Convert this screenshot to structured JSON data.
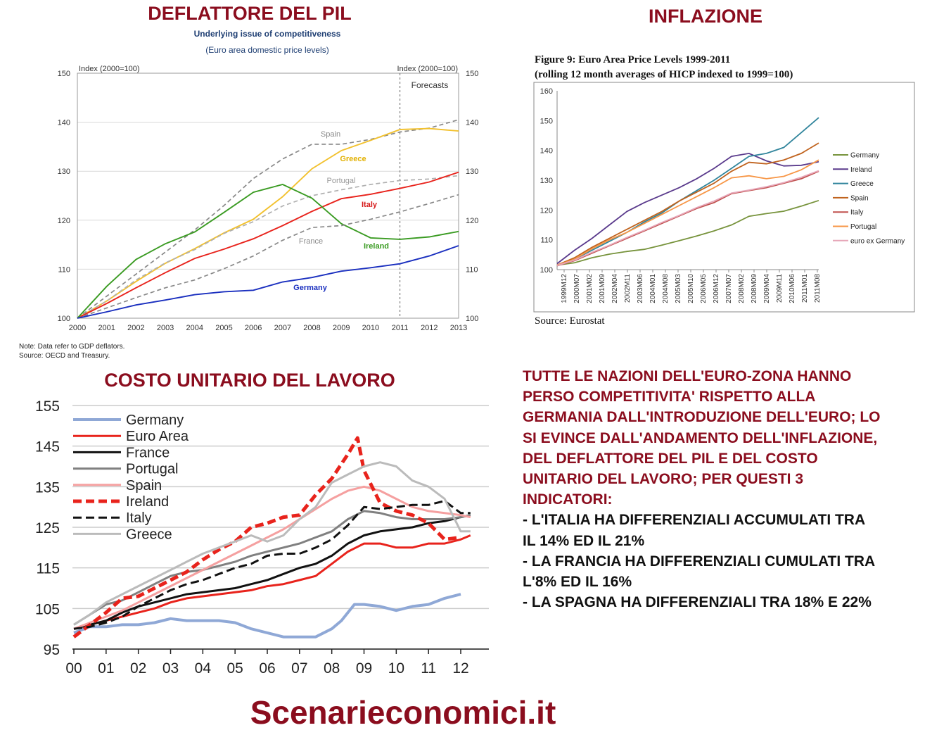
{
  "titles": {
    "deflator": "DEFLATTORE DEL PIL",
    "inflation": "INFLAZIONE",
    "labor_cost": "COSTO UNITARIO DEL LAVORO"
  },
  "deflator": {
    "subtitle": "Underlying issue of competitiveness",
    "subtitle2": "(Euro area domestic price levels)",
    "note": "Note: Data refer to GDP deflators.",
    "source": "Source: OECD and Treasury."
  },
  "inflation": {
    "figure_title": "Figure 9: Euro Area Price Levels 1999-2011",
    "figure_subtitle": "(rolling 12 month averages of HICP indexed to 1999=100)",
    "source": "Source: Eurostat"
  },
  "commentary": {
    "intro_lines": [
      "TUTTE LE NAZIONI DELL'EURO-ZONA HANNO",
      "PERSO COMPETITIVITA' RISPETTO ALLA",
      "GERMANIA DALL'INTRODUZIONE DELL'EURO; LO",
      "SI EVINCE DALL'ANDAMENTO DELL'INFLAZIONE,",
      "DEL DEFLATTORE DEL PIL E DEL COSTO",
      "UNITARIO DEL LAVORO; PER QUESTI 3",
      "INDICATORI:"
    ],
    "points": [
      "- L'ITALIA HA DIFFERENZIALI ACCUMULATI TRA",
      "IL 14% ED IL 21%",
      "- LA FRANCIA HA DIFFERENZIALI CUMULATI TRA",
      "L'8% ED IL 16%",
      "- LA SPAGNA HA DIFFERENZIALI TRA 18% E 22%"
    ]
  },
  "brand": "Scenarieconomici.it",
  "chart_data": [
    {
      "type": "line",
      "title": "DEFLATTORE DEL PIL",
      "ylabel": "Index (2000=100)",
      "ylabel_right": "Index (2000=100)",
      "annotation": "Forecasts",
      "forecast_start": 2011,
      "x": [
        2000,
        2001,
        2002,
        2003,
        2004,
        2005,
        2006,
        2007,
        2008,
        2009,
        2010,
        2011,
        2012,
        2013
      ],
      "ylim": [
        100,
        150
      ],
      "yticks": [
        100,
        110,
        120,
        130,
        140,
        150
      ],
      "series": [
        {
          "name": "Spain",
          "color": "#888888",
          "dashed": true,
          "values": [
            100,
            104.5,
            109,
            113.5,
            118,
            123,
            128.5,
            132.5,
            135.5,
            135.5,
            136.5,
            138,
            138.8,
            140.5
          ]
        },
        {
          "name": "Greece",
          "color": "#f2c12e",
          "dashed": false,
          "values": [
            100,
            103.5,
            107.5,
            111.2,
            114.2,
            117.4,
            120.2,
            124.8,
            130.5,
            134.2,
            136.3,
            138.5,
            138.7,
            138.2
          ]
        },
        {
          "name": "Portugal",
          "color": "#b0b0b0",
          "dashed": true,
          "values": [
            100,
            103.5,
            107.8,
            111.3,
            114,
            117.3,
            119.7,
            122.9,
            125,
            126.2,
            127.3,
            128.1,
            128.4,
            129.1
          ]
        },
        {
          "name": "Italy",
          "color": "#e8231c",
          "dashed": false,
          "values": [
            100,
            103,
            106.2,
            109.3,
            112.2,
            114.1,
            116.2,
            118.9,
            121.8,
            124.4,
            125.3,
            126.5,
            127.8,
            129.8
          ]
        },
        {
          "name": "Ireland",
          "color": "#3a9b22",
          "dashed": false,
          "values": [
            100,
            106.5,
            112,
            115.2,
            117.6,
            121.6,
            125.7,
            127.3,
            124.5,
            119.3,
            116.4,
            116.1,
            116.6,
            117.7
          ]
        },
        {
          "name": "France",
          "color": "#888888",
          "dashed": true,
          "values": [
            100,
            102.1,
            104.2,
            106.2,
            107.8,
            110.1,
            112.7,
            115.9,
            118.5,
            118.9,
            120.2,
            121.7,
            123.4,
            125.2
          ]
        },
        {
          "name": "Germany",
          "color": "#1a2fbf",
          "dashed": false,
          "values": [
            100,
            101.3,
            102.7,
            103.7,
            104.8,
            105.4,
            105.7,
            107.4,
            108.3,
            109.6,
            110.3,
            111.1,
            112.7,
            114.8
          ]
        }
      ]
    },
    {
      "type": "line",
      "title": "Figure 9: Euro Area Price Levels 1999-2011",
      "subtitle": "(rolling 12 month averages of HICP indexed to 1999=100)",
      "x_ticks": [
        "1999M12",
        "2000M07",
        "2001M02",
        "2001M09",
        "2002M04",
        "2002M11",
        "2003M06",
        "2004M01",
        "2004M08",
        "2005M03",
        "2005M10",
        "2006M05",
        "2006M12",
        "2007M07",
        "2008M02",
        "2008M09",
        "2009M04",
        "2009M11",
        "2010M06",
        "2011M01",
        "2011M08"
      ],
      "ylim": [
        100,
        160
      ],
      "yticks": [
        100,
        110,
        120,
        130,
        140,
        150,
        160
      ],
      "legend": "right",
      "series": [
        {
          "name": "Germany",
          "color": "#77933c",
          "values": [
            101.5,
            102.3,
            104,
            105.2,
            106.1,
            106.8,
            108.2,
            109.7,
            111.3,
            113,
            115,
            117.9,
            118.8,
            119.6,
            121.3,
            123.2
          ]
        },
        {
          "name": "Ireland",
          "color": "#5a3a8c",
          "values": [
            102,
            106.5,
            110.5,
            115,
            119.5,
            122.5,
            125,
            127.5,
            130.5,
            134,
            138,
            139,
            136.5,
            134.8,
            135,
            136.2
          ]
        },
        {
          "name": "Greece",
          "color": "#31859c",
          "values": [
            101.5,
            103.5,
            106.5,
            109.5,
            112.5,
            116,
            119,
            123,
            126.5,
            130,
            134,
            138,
            139,
            141,
            146,
            151
          ]
        },
        {
          "name": "Spain",
          "color": "#c0631e",
          "values": [
            101.5,
            104,
            107.5,
            110.5,
            113.5,
            116.5,
            119.5,
            123,
            126,
            129,
            133,
            136,
            135.5,
            136.8,
            139,
            142.5
          ]
        },
        {
          "name": "Italy",
          "color": "#c0504d",
          "values": [
            101.3,
            103,
            105.5,
            108,
            110.5,
            113,
            115.5,
            118,
            120.5,
            122.5,
            125.5,
            126.5,
            127.5,
            129,
            130.5,
            133
          ]
        },
        {
          "name": "Portugal",
          "color": "#f79646",
          "values": [
            101.5,
            103.5,
            107,
            110,
            112.5,
            115.5,
            118.5,
            121.5,
            124.5,
            127.5,
            130.8,
            131.5,
            130.5,
            131.3,
            133.5,
            136.8
          ]
        },
        {
          "name": "euro ex Germany",
          "color": "#e6a6b8",
          "values": [
            101.4,
            103.2,
            105.8,
            108.2,
            110.8,
            113.2,
            115.8,
            118.2,
            120.8,
            123,
            125.7,
            126.7,
            127.8,
            129.2,
            131,
            133.2
          ]
        }
      ]
    },
    {
      "type": "line",
      "title": "COSTO UNITARIO DEL LAVORO",
      "categories": [
        "00",
        "01",
        "02",
        "03",
        "04",
        "05",
        "06",
        "07",
        "08",
        "09",
        "10",
        "11",
        "12"
      ],
      "ylim": [
        95,
        155
      ],
      "yticks": [
        95,
        105,
        115,
        125,
        135,
        145,
        155
      ],
      "legend": "top-left",
      "series": [
        {
          "name": "Germany",
          "color": "#8fa8d6",
          "width": 4,
          "dashed": false,
          "x": [
            0,
            0.5,
            1,
            1.5,
            2,
            2.5,
            3,
            3.5,
            4,
            4.5,
            5,
            5.5,
            6,
            6.5,
            7,
            7.5,
            8,
            8.3,
            8.7,
            9,
            9.5,
            10,
            10.5,
            11,
            11.5,
            12
          ],
          "values": [
            99,
            100.5,
            100.5,
            101,
            101,
            101.5,
            102.5,
            102,
            102,
            102,
            101.5,
            100,
            99,
            98,
            98,
            98,
            100,
            102,
            106,
            106,
            105.5,
            104.5,
            105.5,
            106,
            107.5,
            108.5
          ]
        },
        {
          "name": "Euro Area",
          "color": "#e8231c",
          "width": 3,
          "dashed": false,
          "x": [
            0,
            0.5,
            1,
            1.5,
            2,
            2.5,
            3,
            3.5,
            4,
            4.5,
            5,
            5.5,
            6,
            6.5,
            7,
            7.5,
            8,
            8.5,
            9,
            9.5,
            10,
            10.5,
            11,
            11.5,
            12,
            12.3
          ],
          "values": [
            100,
            101,
            102,
            103,
            104,
            105,
            106.5,
            107.5,
            108,
            108.5,
            109,
            109.5,
            110.5,
            111,
            112,
            113,
            116,
            119,
            121,
            121,
            120,
            120,
            121,
            121,
            122,
            123
          ]
        },
        {
          "name": "France",
          "color": "#111111",
          "width": 3,
          "dashed": false,
          "x": [
            0,
            0.5,
            1,
            1.5,
            2,
            2.5,
            3,
            3.5,
            4,
            4.5,
            5,
            5.5,
            6,
            6.5,
            7,
            7.5,
            8,
            8.5,
            9,
            9.5,
            10,
            10.5,
            11,
            11.5,
            12,
            12.3
          ],
          "values": [
            100,
            101,
            102,
            104,
            105.5,
            106.5,
            107.5,
            108.5,
            109,
            109.5,
            110,
            111,
            112,
            113.5,
            115,
            116,
            118,
            121,
            123,
            124,
            124.5,
            125,
            126,
            126.5,
            127.5,
            128
          ]
        },
        {
          "name": "Portugal",
          "color": "#808080",
          "width": 3,
          "dashed": false,
          "x": [
            0,
            0.5,
            1,
            1.5,
            2,
            2.5,
            3,
            3.5,
            4,
            4.5,
            5,
            5.5,
            6,
            6.5,
            7,
            7.5,
            8,
            8.5,
            9,
            9.5,
            10,
            10.5,
            11,
            11.5,
            12,
            12.3
          ],
          "values": [
            101,
            103.5,
            106,
            107,
            109,
            111,
            113,
            114,
            114.5,
            115.5,
            116.5,
            118,
            119,
            120,
            121,
            122.5,
            124,
            127,
            129,
            128.5,
            127.5,
            127,
            127,
            127,
            127.5,
            128
          ]
        },
        {
          "name": "Spain",
          "color": "#f5a0a0",
          "width": 3,
          "dashed": false,
          "x": [
            0,
            0.5,
            1,
            1.5,
            2,
            2.5,
            3,
            3.5,
            4,
            4.5,
            5,
            5.5,
            6,
            6.5,
            7,
            7.5,
            8,
            8.5,
            9,
            9.5,
            10,
            10.5,
            11,
            11.5,
            12,
            12.3
          ],
          "values": [
            100,
            101.5,
            103,
            104.5,
            106.5,
            108.5,
            110.5,
            112.5,
            114.5,
            116.5,
            118.5,
            120.5,
            122.5,
            124.5,
            127,
            129.5,
            132,
            134,
            135,
            134,
            132,
            130,
            129,
            128.5,
            128,
            127.5
          ]
        },
        {
          "name": "Ireland",
          "color": "#e8231c",
          "width": 5,
          "dashed": true,
          "x": [
            0,
            0.5,
            1,
            1.5,
            2,
            2.5,
            3,
            3.5,
            4,
            4.5,
            5,
            5.5,
            6,
            6.5,
            7,
            7.5,
            8,
            8.5,
            8.8,
            9,
            9.5,
            10,
            10.5,
            11,
            11.5,
            12
          ],
          "values": [
            98,
            101,
            104,
            107.5,
            108,
            110,
            112,
            114,
            117,
            119.5,
            121.5,
            125,
            126,
            127.5,
            128,
            133,
            137,
            143,
            147,
            139,
            131,
            129,
            128,
            126,
            122,
            122.5
          ]
        },
        {
          "name": "Italy",
          "color": "#111111",
          "width": 3,
          "dashed": true,
          "x": [
            0,
            0.5,
            1,
            1.5,
            2,
            2.5,
            3,
            3.5,
            4,
            4.5,
            5,
            5.5,
            6,
            6.5,
            7,
            7.5,
            8,
            8.5,
            9,
            9.5,
            10,
            10.5,
            11,
            11.5,
            12,
            12.3
          ],
          "values": [
            100,
            100.5,
            101.5,
            103,
            105.5,
            107.5,
            109.5,
            111,
            112,
            113.5,
            115,
            116,
            118,
            118.5,
            118.5,
            120,
            122,
            125.5,
            130,
            129.5,
            130,
            130.5,
            130.5,
            131.5,
            128.5,
            128.5
          ]
        },
        {
          "name": "Greece",
          "color": "#bbbbbb",
          "width": 3,
          "dashed": false,
          "x": [
            0,
            0.5,
            1,
            1.5,
            2,
            2.5,
            3,
            3.5,
            4,
            4.5,
            5,
            5.5,
            6,
            6.5,
            7,
            7.5,
            8,
            8.5,
            9,
            9.5,
            10,
            10.5,
            11,
            11.5,
            12,
            12.3
          ],
          "values": [
            101,
            103.5,
            106.5,
            108.5,
            110.5,
            112.5,
            114.5,
            116.5,
            118.5,
            120,
            121.5,
            123,
            121.5,
            123,
            127,
            130,
            136,
            138,
            140,
            141,
            140,
            136.5,
            135,
            132,
            124,
            124
          ]
        }
      ]
    }
  ]
}
